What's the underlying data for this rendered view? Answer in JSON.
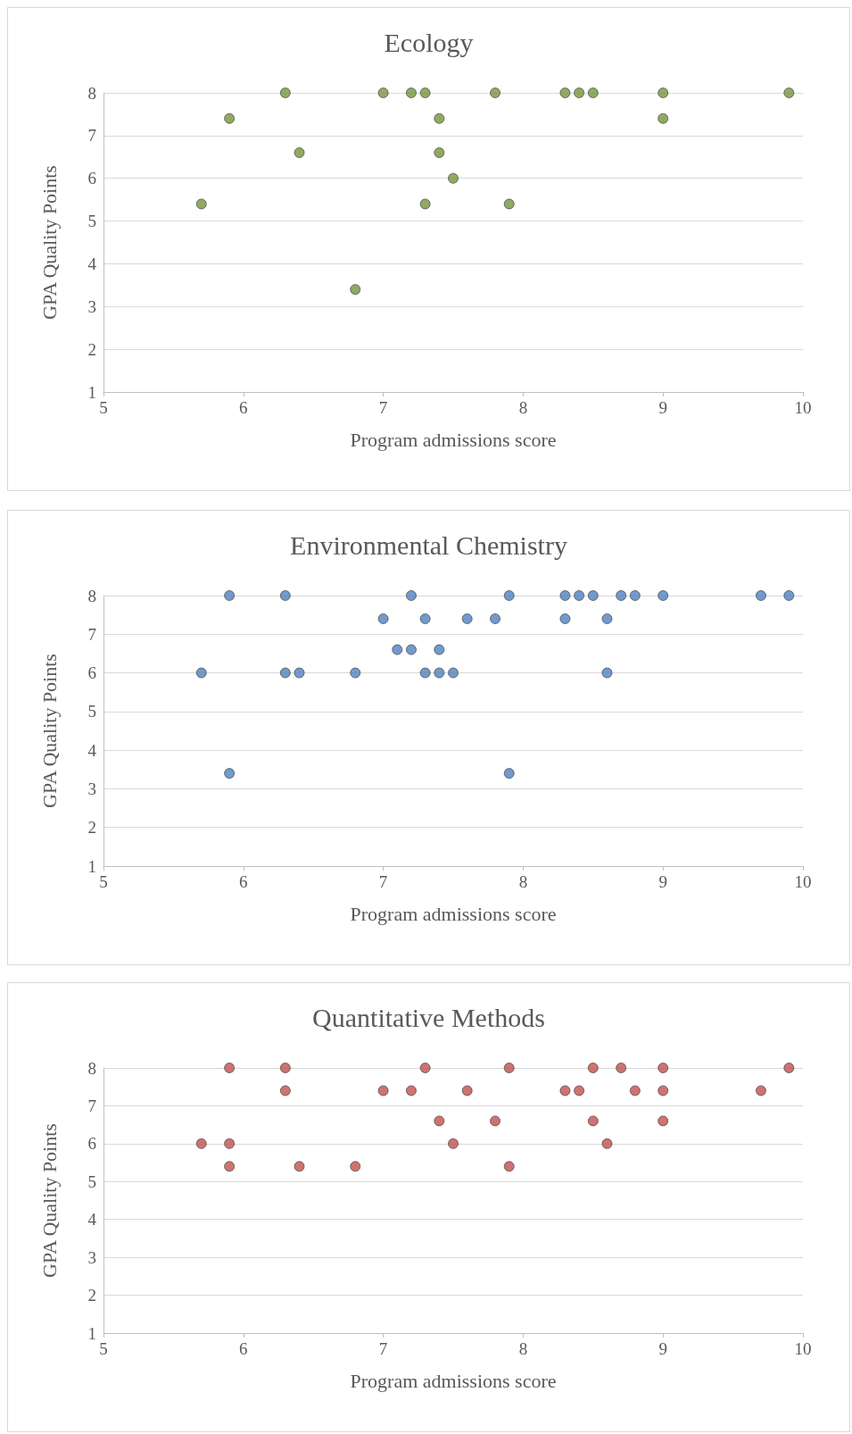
{
  "chart_data": [
    {
      "type": "scatter",
      "title": "Ecology",
      "xlabel": "Program admissions score",
      "ylabel": "GPA Quality Points",
      "xlim": [
        5,
        10
      ],
      "xticks": [
        5,
        6,
        7,
        8,
        9,
        10
      ],
      "ylim": [
        1,
        8
      ],
      "yticks": [
        1,
        2,
        3,
        4,
        5,
        6,
        7,
        8
      ],
      "grid": "y",
      "marker": "circle",
      "series": [
        {
          "color": "#77933c",
          "x": [
            6.3,
            7.0,
            7.2,
            7.3,
            7.8,
            8.3,
            8.4,
            8.5,
            9.0,
            9.9,
            5.9,
            7.4,
            9.0,
            6.4,
            7.4,
            7.5,
            5.7,
            7.3,
            7.9,
            6.8
          ],
          "values": [
            8,
            8,
            8,
            8,
            8,
            8,
            8,
            8,
            8,
            8,
            7.4,
            7.4,
            7.4,
            6.6,
            6.6,
            6.0,
            5.4,
            5.4,
            5.4,
            3.4
          ]
        }
      ]
    },
    {
      "type": "scatter",
      "title": "Environmental Chemistry",
      "xlabel": "Program admissions score",
      "ylabel": "GPA Quality Points",
      "xlim": [
        5,
        10
      ],
      "xticks": [
        5,
        6,
        7,
        8,
        9,
        10
      ],
      "ylim": [
        1,
        8
      ],
      "yticks": [
        1,
        2,
        3,
        4,
        5,
        6,
        7,
        8
      ],
      "grid": "y",
      "marker": "circle",
      "series": [
        {
          "color": "#4f81bd",
          "x": [
            5.9,
            6.3,
            7.2,
            7.9,
            8.3,
            8.4,
            8.5,
            8.7,
            8.8,
            9.0,
            9.7,
            9.9,
            7.0,
            7.3,
            7.6,
            7.8,
            8.3,
            8.6,
            7.1,
            7.2,
            7.4,
            5.7,
            6.3,
            6.4,
            6.8,
            7.3,
            7.4,
            7.5,
            8.6,
            5.9,
            7.9
          ],
          "values": [
            8,
            8,
            8,
            8,
            8,
            8,
            8,
            8,
            8,
            8,
            8,
            8,
            7.4,
            7.4,
            7.4,
            7.4,
            7.4,
            7.4,
            6.6,
            6.6,
            6.6,
            6.0,
            6.0,
            6.0,
            6.0,
            6.0,
            6.0,
            6.0,
            6.0,
            3.4,
            3.4
          ]
        }
      ]
    },
    {
      "type": "scatter",
      "title": "Quantitative Methods",
      "xlabel": "Program admissions score",
      "ylabel": "GPA Quality Points",
      "xlim": [
        5,
        10
      ],
      "xticks": [
        5,
        6,
        7,
        8,
        9,
        10
      ],
      "ylim": [
        1,
        8
      ],
      "yticks": [
        1,
        2,
        3,
        4,
        5,
        6,
        7,
        8
      ],
      "grid": "y",
      "marker": "circle",
      "series": [
        {
          "color": "#c0504d",
          "x": [
            5.9,
            6.3,
            7.3,
            7.9,
            8.5,
            8.7,
            9.0,
            9.9,
            6.3,
            7.0,
            7.2,
            7.6,
            8.3,
            8.4,
            8.8,
            9.0,
            9.7,
            7.4,
            7.8,
            8.5,
            9.0,
            5.7,
            5.9,
            7.5,
            8.6,
            5.9,
            6.4,
            6.8,
            7.9
          ],
          "values": [
            8,
            8,
            8,
            8,
            8,
            8,
            8,
            8,
            7.4,
            7.4,
            7.4,
            7.4,
            7.4,
            7.4,
            7.4,
            7.4,
            7.4,
            6.6,
            6.6,
            6.6,
            6.6,
            6.0,
            6.0,
            6.0,
            6.0,
            5.4,
            5.4,
            5.4,
            5.4
          ]
        }
      ]
    }
  ]
}
